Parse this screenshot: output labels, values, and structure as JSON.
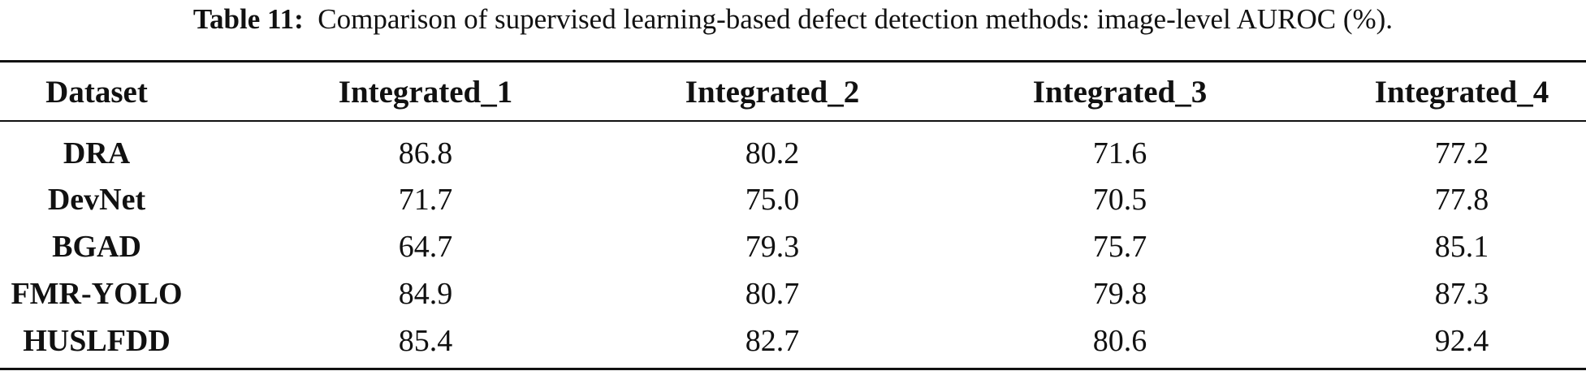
{
  "caption": {
    "label": "Table 11:",
    "text": "Comparison of supervised learning-based defect detection methods: image-level AUROC (%)."
  },
  "table": {
    "header": [
      "Dataset",
      "Integrated_1",
      "Integrated_2",
      "Integrated_3",
      "Integrated_4"
    ],
    "rows": [
      [
        "DRA",
        "86.8",
        "80.2",
        "71.6",
        "77.2"
      ],
      [
        "DevNet",
        "71.7",
        "75.0",
        "70.5",
        "77.8"
      ],
      [
        "BGAD",
        "64.7",
        "79.3",
        "75.7",
        "85.1"
      ],
      [
        "FMR-YOLO",
        "84.9",
        "80.7",
        "79.8",
        "87.3"
      ],
      [
        "HUSLFDD",
        "85.4",
        "82.7",
        "80.6",
        "92.4"
      ]
    ]
  }
}
